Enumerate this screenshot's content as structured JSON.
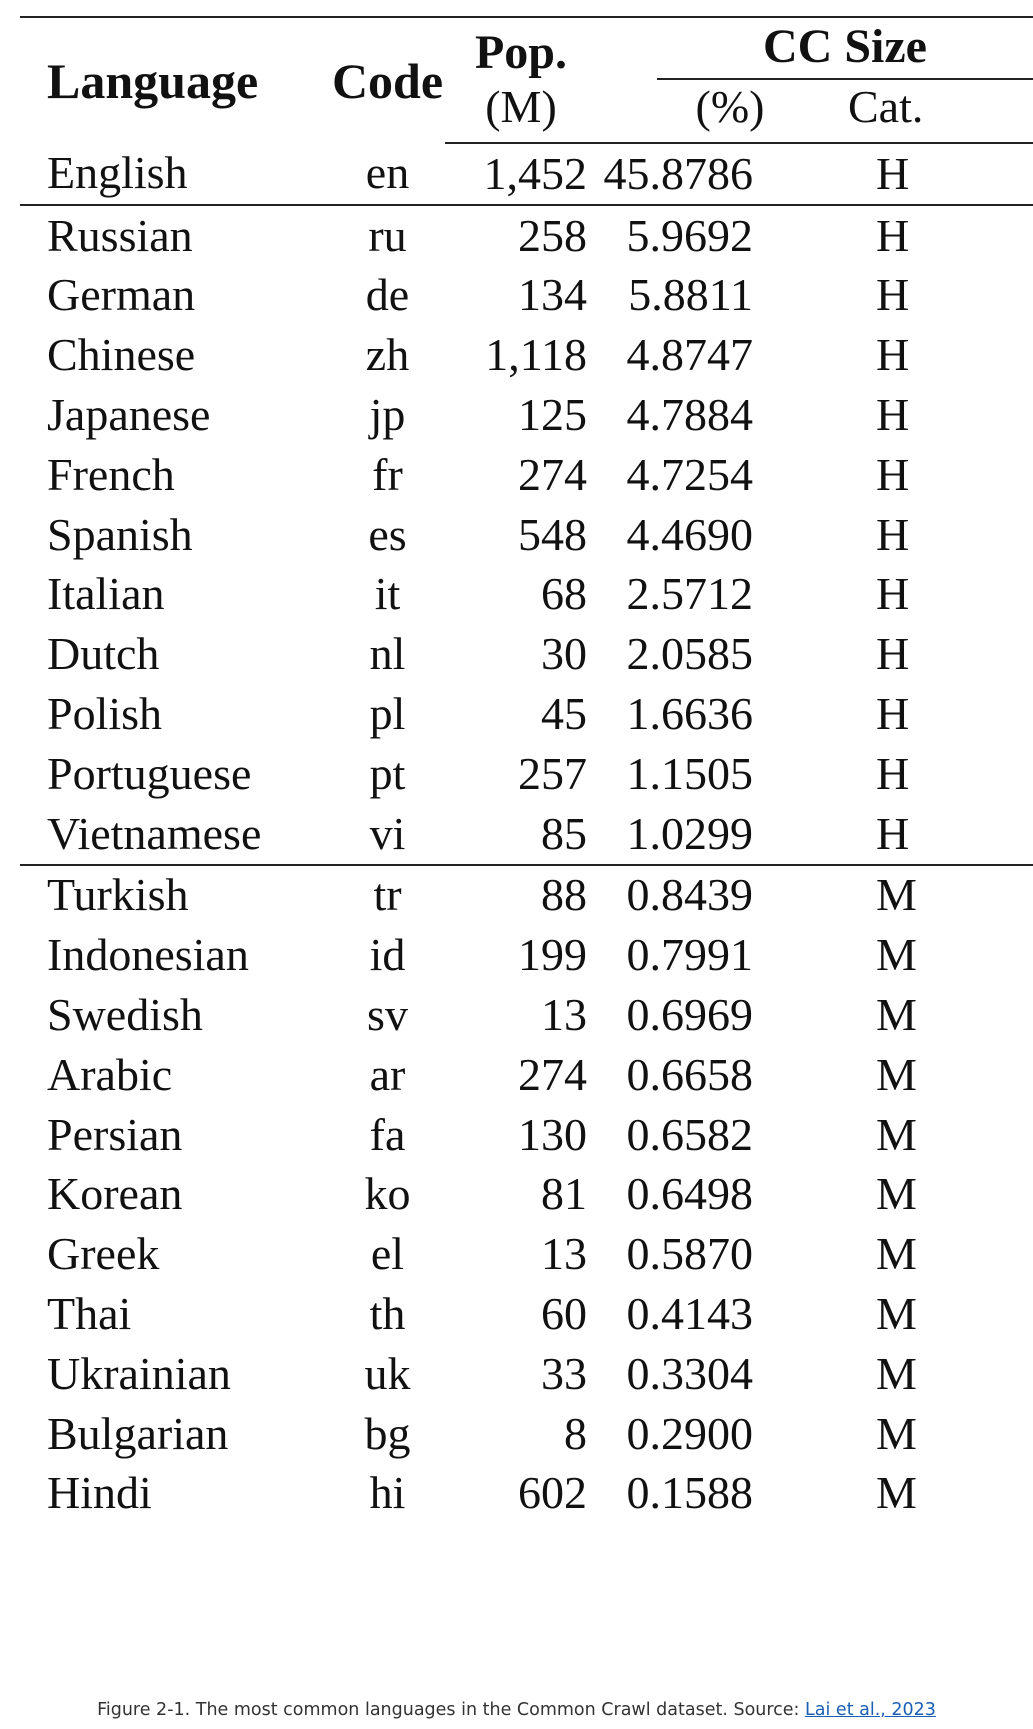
{
  "table": {
    "headers": {
      "language": "Language",
      "code": "Code",
      "pop_top": "Pop.",
      "pop_bottom": "(M)",
      "cc_size": "CC Size",
      "pct": "(%)",
      "cat": "Cat."
    },
    "groups": [
      [
        {
          "language": "English",
          "code": "en",
          "pop": "1,452",
          "size": "45.8786",
          "cat": "H"
        }
      ],
      [
        {
          "language": "Russian",
          "code": "ru",
          "pop": "258",
          "size": "5.9692",
          "cat": "H"
        },
        {
          "language": "German",
          "code": "de",
          "pop": "134",
          "size": "5.8811",
          "cat": "H"
        },
        {
          "language": "Chinese",
          "code": "zh",
          "pop": "1,118",
          "size": "4.8747",
          "cat": "H"
        },
        {
          "language": "Japanese",
          "code": "jp",
          "pop": "125",
          "size": "4.7884",
          "cat": "H"
        },
        {
          "language": "French",
          "code": "fr",
          "pop": "274",
          "size": "4.7254",
          "cat": "H"
        },
        {
          "language": "Spanish",
          "code": "es",
          "pop": "548",
          "size": "4.4690",
          "cat": "H"
        },
        {
          "language": "Italian",
          "code": "it",
          "pop": "68",
          "size": "2.5712",
          "cat": "H"
        },
        {
          "language": "Dutch",
          "code": "nl",
          "pop": "30",
          "size": "2.0585",
          "cat": "H"
        },
        {
          "language": "Polish",
          "code": "pl",
          "pop": "45",
          "size": "1.6636",
          "cat": "H"
        },
        {
          "language": "Portuguese",
          "code": "pt",
          "pop": "257",
          "size": "1.1505",
          "cat": "H"
        },
        {
          "language": "Vietnamese",
          "code": "vi",
          "pop": "85",
          "size": "1.0299",
          "cat": "H"
        }
      ],
      [
        {
          "language": "Turkish",
          "code": "tr",
          "pop": "88",
          "size": "0.8439",
          "cat": "M"
        },
        {
          "language": "Indonesian",
          "code": "id",
          "pop": "199",
          "size": "0.7991",
          "cat": "M"
        },
        {
          "language": "Swedish",
          "code": "sv",
          "pop": "13",
          "size": "0.6969",
          "cat": "M"
        },
        {
          "language": "Arabic",
          "code": "ar",
          "pop": "274",
          "size": "0.6658",
          "cat": "M"
        },
        {
          "language": "Persian",
          "code": "fa",
          "pop": "130",
          "size": "0.6582",
          "cat": "M"
        },
        {
          "language": "Korean",
          "code": "ko",
          "pop": "81",
          "size": "0.6498",
          "cat": "M"
        },
        {
          "language": "Greek",
          "code": "el",
          "pop": "13",
          "size": "0.5870",
          "cat": "M"
        },
        {
          "language": "Thai",
          "code": "th",
          "pop": "60",
          "size": "0.4143",
          "cat": "M"
        },
        {
          "language": "Ukrainian",
          "code": "uk",
          "pop": "33",
          "size": "0.3304",
          "cat": "M"
        },
        {
          "language": "Bulgarian",
          "code": "bg",
          "pop": "8",
          "size": "0.2900",
          "cat": "M"
        },
        {
          "language": "Hindi",
          "code": "hi",
          "pop": "602",
          "size": "0.1588",
          "cat": "M"
        }
      ]
    ]
  },
  "caption": {
    "text": "Figure 2-1. The most common languages in the Common Crawl dataset. Source: ",
    "link_text": "Lai et al., 2023"
  }
}
